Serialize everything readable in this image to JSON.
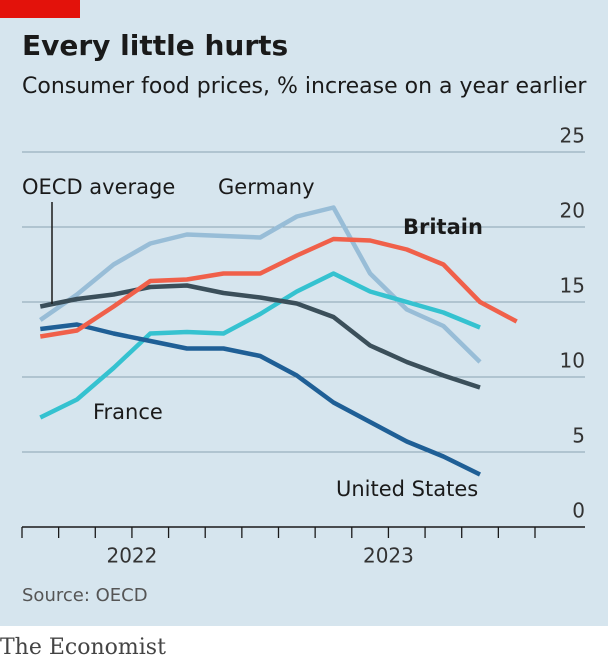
{
  "chart_data": {
    "type": "line",
    "title": "Every little hurts",
    "subtitle": "Consumer food prices, % increase on a year earlier",
    "source": "Source: OECD",
    "publisher": "The Economist",
    "categories": [
      null,
      null,
      null,
      null,
      null,
      null,
      null,
      null,
      null,
      null,
      null,
      null,
      null,
      null
    ],
    "year_labels": [
      "2022",
      "2023"
    ],
    "ylim": [
      0,
      25
    ],
    "yticks": [
      0,
      5,
      10,
      15,
      20,
      25
    ],
    "grid": true,
    "series": [
      {
        "name": "Germany",
        "color": "#98bdd7",
        "values": [
          13.8,
          15.5,
          17.5,
          18.9,
          19.5,
          19.4,
          19.3,
          20.7,
          21.3,
          16.9,
          14.5,
          13.4,
          11.0,
          null
        ]
      },
      {
        "name": "France",
        "color": "#35c2d0",
        "values": [
          7.3,
          8.5,
          10.6,
          12.9,
          13.0,
          12.9,
          14.2,
          15.7,
          16.9,
          15.7,
          15.0,
          14.3,
          13.3,
          null
        ]
      },
      {
        "name": "United States",
        "color": "#1f5f96",
        "values": [
          13.2,
          13.5,
          12.9,
          12.4,
          11.9,
          11.9,
          11.4,
          10.1,
          8.3,
          7.0,
          5.7,
          4.7,
          3.5,
          null
        ]
      },
      {
        "name": "OECD average",
        "color": "#3b4f5a",
        "values": [
          14.7,
          15.2,
          15.5,
          16.0,
          16.1,
          15.6,
          15.3,
          14.9,
          14.0,
          12.1,
          11.0,
          10.1,
          9.3,
          null
        ]
      },
      {
        "name": "Britain",
        "color": "#f0604a",
        "values": [
          12.7,
          13.1,
          14.7,
          16.4,
          16.5,
          16.9,
          16.9,
          18.1,
          19.2,
          19.1,
          18.5,
          17.5,
          15.0,
          13.7
        ]
      }
    ]
  }
}
